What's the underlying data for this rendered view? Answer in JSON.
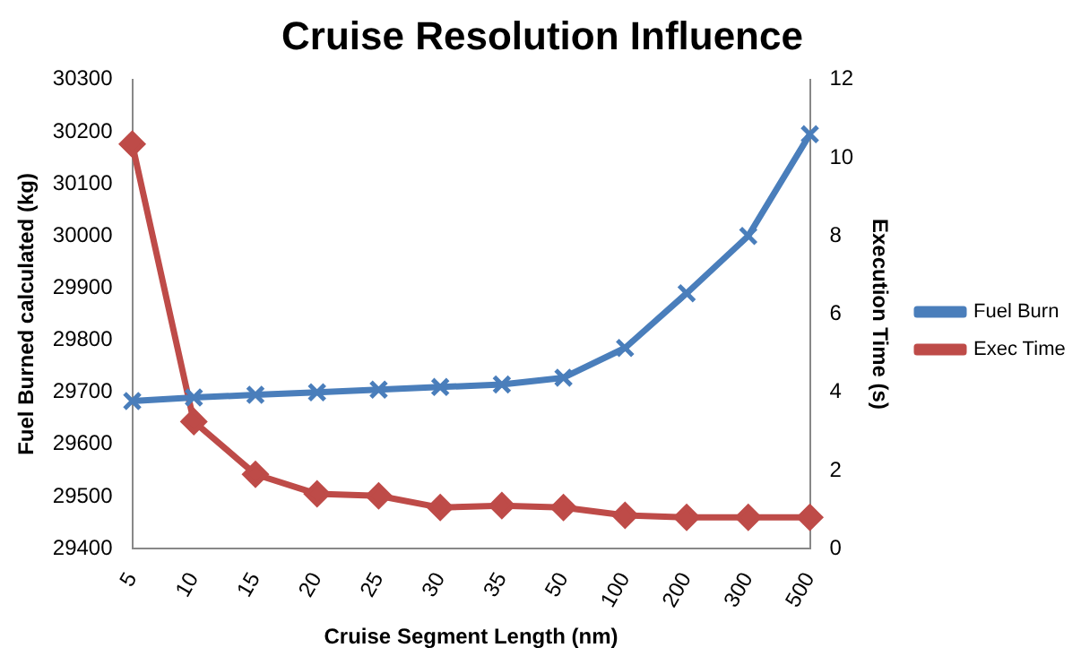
{
  "chart_data": {
    "type": "line",
    "title": "Cruise Resolution Influence",
    "xlabel": "Cruise Segment Length (nm)",
    "ylabel": "Fuel Burned calculated (kg)",
    "y2label": "Execution Time (s)",
    "categories": [
      "5",
      "10",
      "15",
      "20",
      "25",
      "30",
      "35",
      "50",
      "100",
      "200",
      "300",
      "500"
    ],
    "series": [
      {
        "name": "Fuel Burn",
        "color": "#4a7ebb",
        "marker": "cross",
        "values": [
          29683,
          29690,
          29695,
          29700,
          29705,
          29710,
          29715,
          29728,
          29785,
          29890,
          30000,
          30195
        ]
      },
      {
        "name": "Exec Time",
        "color": "#be4b48",
        "marker": "diamond",
        "axis": "y2",
        "values": [
          10.35,
          3.25,
          1.9,
          1.4,
          1.35,
          1.05,
          1.1,
          1.05,
          0.85,
          0.8,
          0.8,
          0.8
        ]
      }
    ],
    "ylim": [
      29400,
      30300
    ],
    "yticks": [
      29400,
      29500,
      29600,
      29700,
      29800,
      29900,
      30000,
      30100,
      30200,
      30300
    ],
    "y2lim": [
      0,
      12
    ],
    "y2ticks": [
      0,
      2,
      4,
      6,
      8,
      10,
      12
    ],
    "grid": false,
    "legend": "right"
  }
}
